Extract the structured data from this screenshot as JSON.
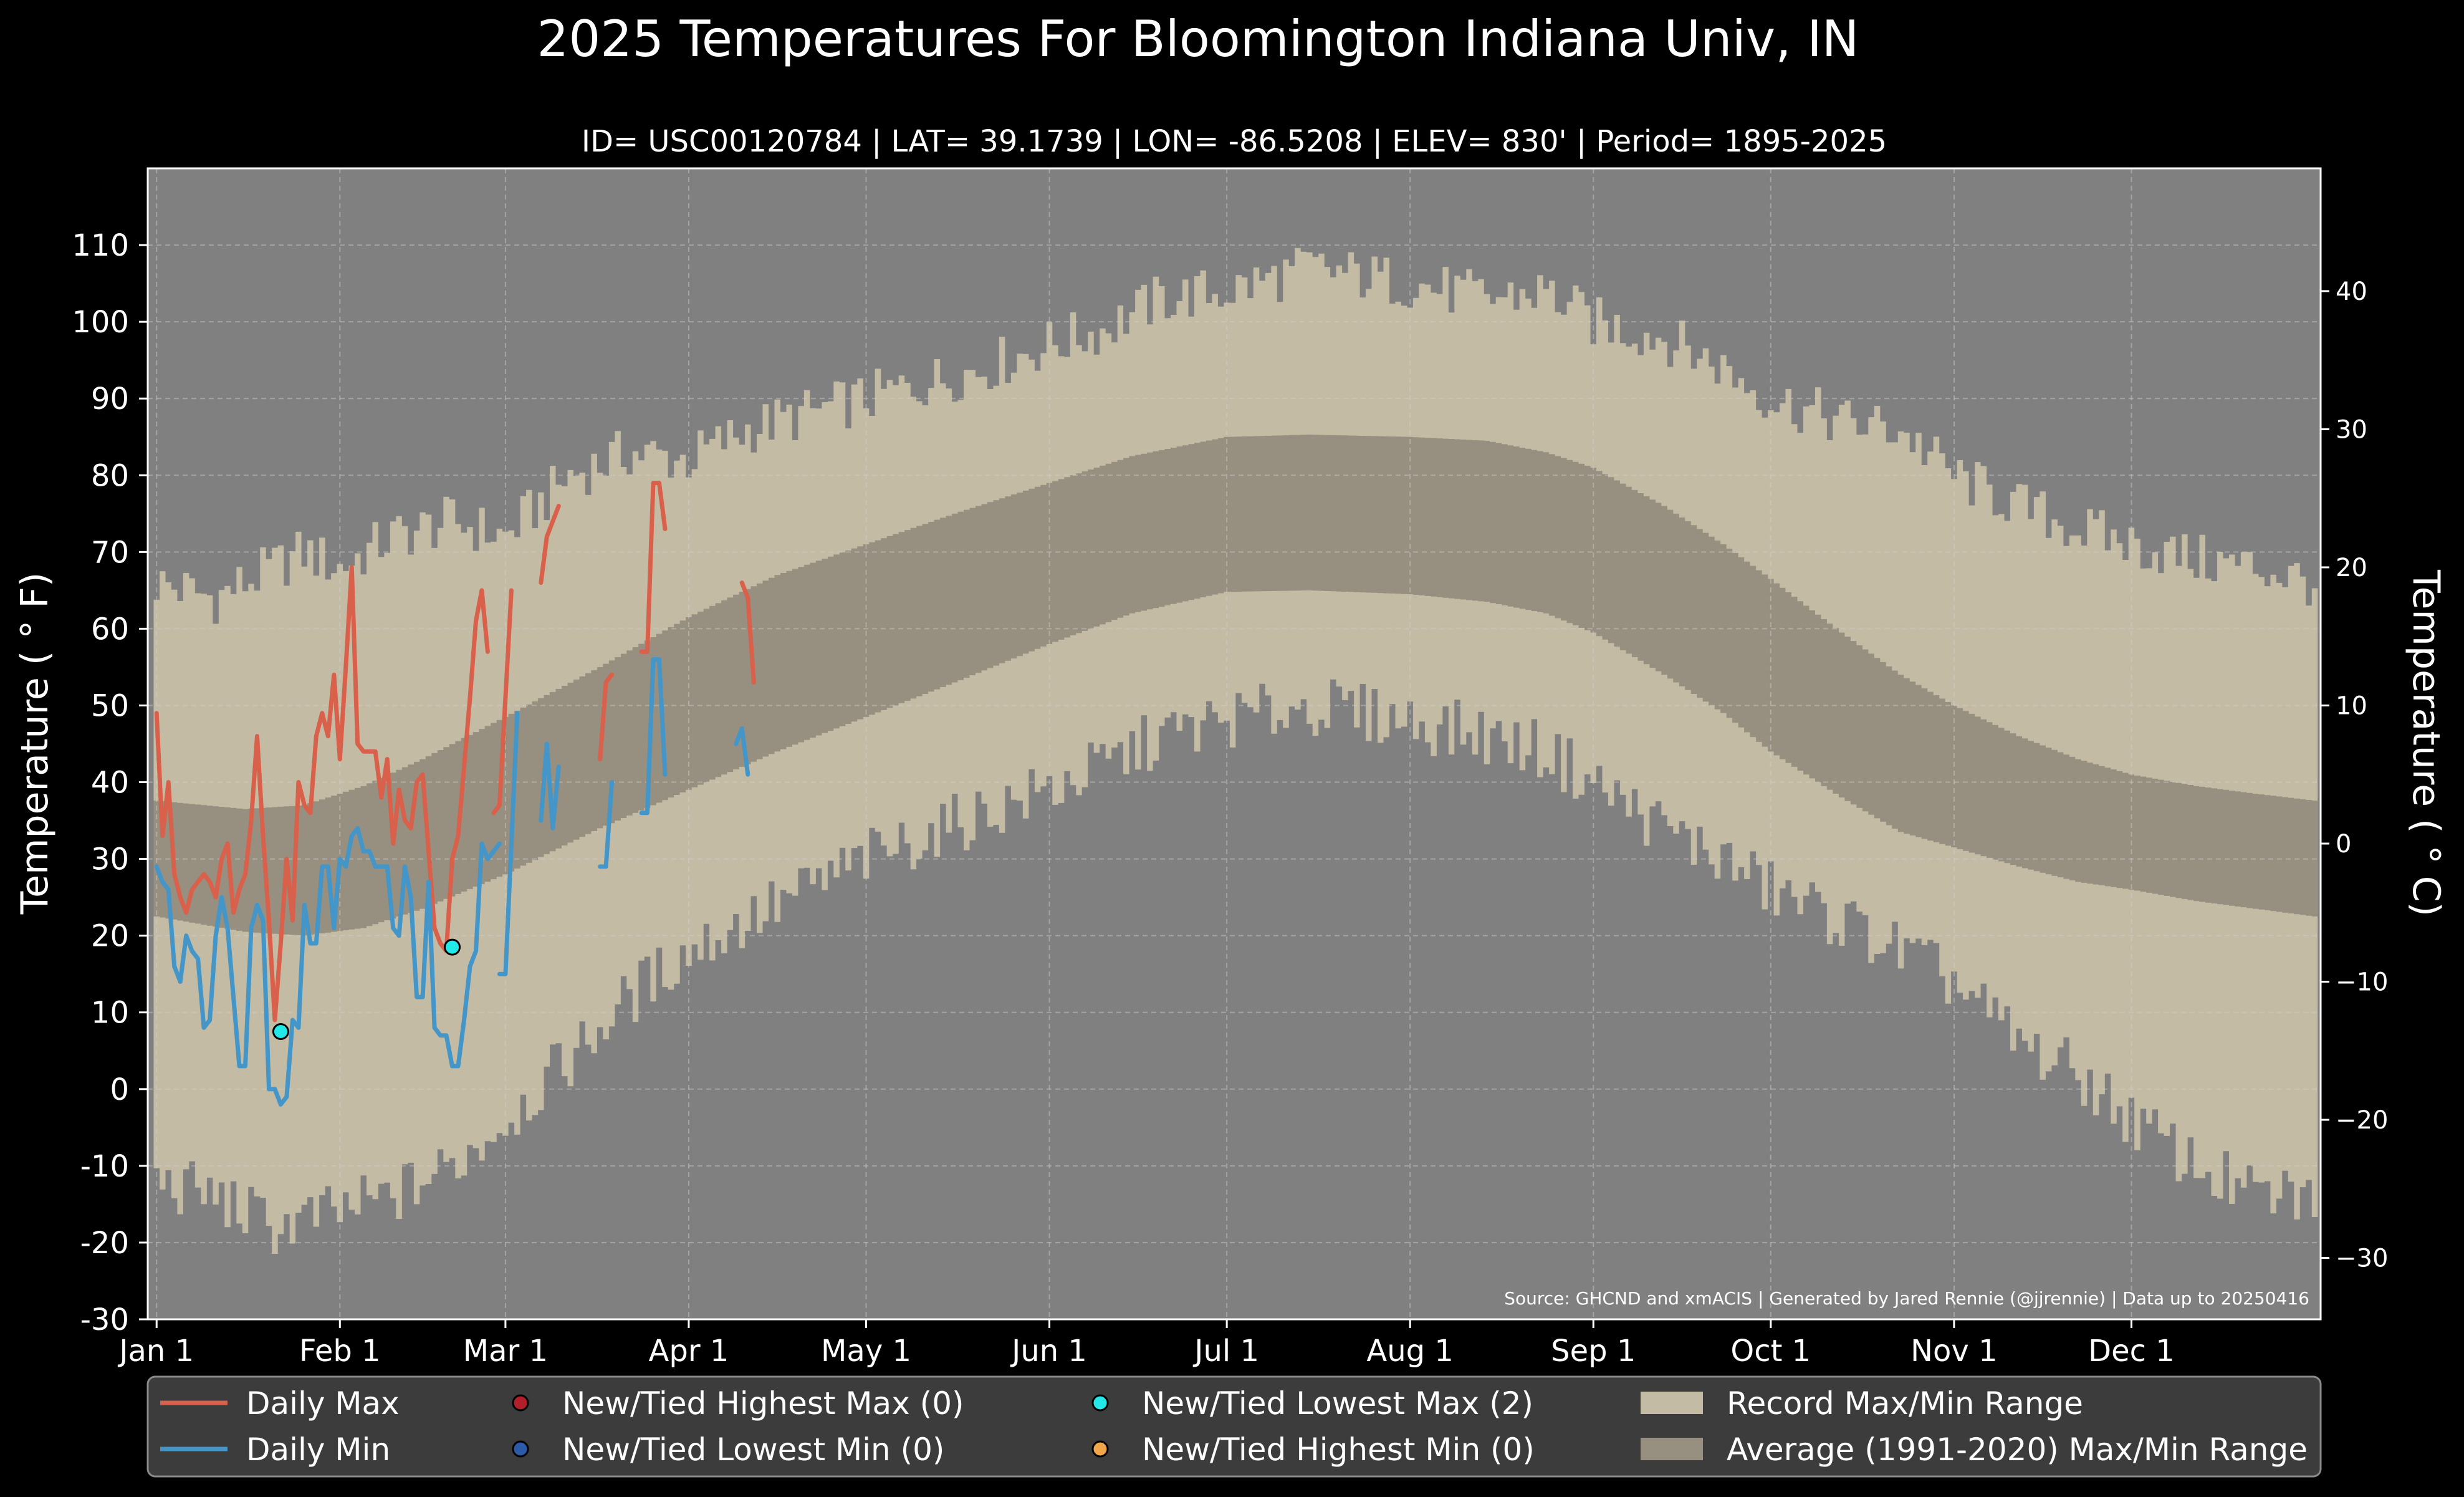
{
  "colors": {
    "background": "#000000",
    "plot_bg": "#808080",
    "record_fill": "#c4bba4",
    "normal_fill": "#978f7f",
    "daily_max": "#d9604a",
    "daily_min": "#4495c8",
    "record_low_max_marker": "#22e8e8",
    "record_high_max_marker": "#b21f2b",
    "record_low_min_marker": "#2b5aa8",
    "record_high_min_marker": "#f2a64a",
    "legend_bg": "#3c3c3c"
  },
  "chart_data": {
    "type": "line",
    "title": "2025 Temperatures For Bloomington Indiana Univ, IN",
    "subtitle": "ID= USC00120784 | LAT= 39.1739 | LON= -86.5208 | ELEV= 830' | Period= 1895-2025",
    "ylabel": "Temperature ($^\\circ$F)",
    "ylabel_display": "Temperature ( ° F)",
    "ylabel_right": "Temperature ( ° C)",
    "ylim": [
      -30,
      120
    ],
    "xlim": [
      -1.5,
      366
    ],
    "y_ticks": [
      -30,
      -20,
      -10,
      0,
      10,
      20,
      30,
      40,
      50,
      60,
      70,
      80,
      90,
      100,
      110
    ],
    "y_ticks_right_c": [
      -30,
      -20,
      -10,
      0,
      10,
      20,
      30,
      40
    ],
    "x_ticks": [
      {
        "label": "Jan 1",
        "day": 0
      },
      {
        "label": "Feb 1",
        "day": 31
      },
      {
        "label": "Mar 1",
        "day": 59
      },
      {
        "label": "Apr 1",
        "day": 90
      },
      {
        "label": "May 1",
        "day": 120
      },
      {
        "label": "Jun 1",
        "day": 151
      },
      {
        "label": "Jul 1",
        "day": 181
      },
      {
        "label": "Aug 1",
        "day": 212
      },
      {
        "label": "Sep 1",
        "day": 243
      },
      {
        "label": "Oct 1",
        "day": 273
      },
      {
        "label": "Nov 1",
        "day": 304
      },
      {
        "label": "Dec 1",
        "day": 334
      }
    ],
    "grid": true,
    "source": "Source: GHCND and xmACIS | Generated by Jared Rennie (@jjrennie) | Data up to 20250416",
    "record_max_anchors": [
      [
        0,
        66
      ],
      [
        10,
        64
      ],
      [
        20,
        68
      ],
      [
        25,
        70
      ],
      [
        31,
        68
      ],
      [
        40,
        72
      ],
      [
        50,
        74
      ],
      [
        59,
        72
      ],
      [
        70,
        80
      ],
      [
        80,
        83
      ],
      [
        90,
        82
      ],
      [
        100,
        86
      ],
      [
        110,
        88
      ],
      [
        120,
        90
      ],
      [
        130,
        92
      ],
      [
        140,
        94
      ],
      [
        151,
        97
      ],
      [
        160,
        99
      ],
      [
        170,
        103
      ],
      [
        181,
        104
      ],
      [
        195,
        107
      ],
      [
        212,
        105
      ],
      [
        225,
        103
      ],
      [
        235,
        104
      ],
      [
        243,
        100
      ],
      [
        255,
        98
      ],
      [
        265,
        94
      ],
      [
        273,
        90
      ],
      [
        285,
        87
      ],
      [
        295,
        86
      ],
      [
        304,
        80
      ],
      [
        315,
        76
      ],
      [
        325,
        73
      ],
      [
        334,
        71
      ],
      [
        345,
        69
      ],
      [
        355,
        68
      ],
      [
        365,
        66
      ]
    ],
    "record_min_anchors": [
      [
        0,
        -12
      ],
      [
        10,
        -14
      ],
      [
        20,
        -18
      ],
      [
        31,
        -16
      ],
      [
        40,
        -14
      ],
      [
        50,
        -10
      ],
      [
        59,
        -4
      ],
      [
        70,
        4
      ],
      [
        80,
        12
      ],
      [
        90,
        18
      ],
      [
        100,
        22
      ],
      [
        110,
        26
      ],
      [
        120,
        30
      ],
      [
        130,
        33
      ],
      [
        140,
        36
      ],
      [
        151,
        39
      ],
      [
        160,
        42
      ],
      [
        170,
        46
      ],
      [
        181,
        48
      ],
      [
        195,
        50
      ],
      [
        212,
        48
      ],
      [
        225,
        46
      ],
      [
        235,
        44
      ],
      [
        243,
        40
      ],
      [
        255,
        34
      ],
      [
        265,
        30
      ],
      [
        273,
        26
      ],
      [
        285,
        22
      ],
      [
        295,
        18
      ],
      [
        304,
        14
      ],
      [
        315,
        6
      ],
      [
        325,
        2
      ],
      [
        334,
        -4
      ],
      [
        345,
        -10
      ],
      [
        355,
        -14
      ],
      [
        365,
        -14
      ]
    ],
    "normal_max_anchors": [
      [
        0,
        37.6
      ],
      [
        15,
        36.5
      ],
      [
        25,
        37
      ],
      [
        35,
        39.5
      ],
      [
        45,
        43
      ],
      [
        59,
        48.5
      ],
      [
        75,
        55
      ],
      [
        90,
        61.5
      ],
      [
        105,
        67
      ],
      [
        120,
        71
      ],
      [
        135,
        75
      ],
      [
        151,
        79
      ],
      [
        165,
        82.5
      ],
      [
        181,
        85
      ],
      [
        195,
        85.3
      ],
      [
        212,
        85
      ],
      [
        225,
        84.5
      ],
      [
        235,
        83
      ],
      [
        243,
        81
      ],
      [
        255,
        76
      ],
      [
        265,
        71
      ],
      [
        273,
        66.5
      ],
      [
        285,
        59.5
      ],
      [
        295,
        54
      ],
      [
        304,
        50
      ],
      [
        315,
        46
      ],
      [
        325,
        43
      ],
      [
        334,
        41
      ],
      [
        345,
        39.5
      ],
      [
        355,
        38.5
      ],
      [
        365,
        37.6
      ]
    ],
    "normal_min_anchors": [
      [
        0,
        22.5
      ],
      [
        15,
        20.5
      ],
      [
        25,
        20
      ],
      [
        35,
        21
      ],
      [
        45,
        23.5
      ],
      [
        59,
        28
      ],
      [
        75,
        34
      ],
      [
        90,
        39
      ],
      [
        105,
        44
      ],
      [
        120,
        48.5
      ],
      [
        135,
        53
      ],
      [
        151,
        58
      ],
      [
        165,
        62
      ],
      [
        181,
        64.8
      ],
      [
        195,
        65
      ],
      [
        212,
        64.5
      ],
      [
        225,
        63.5
      ],
      [
        235,
        62
      ],
      [
        243,
        59.5
      ],
      [
        255,
        54
      ],
      [
        265,
        49
      ],
      [
        273,
        44
      ],
      [
        285,
        38
      ],
      [
        295,
        33.5
      ],
      [
        304,
        31.5
      ],
      [
        315,
        29
      ],
      [
        325,
        27
      ],
      [
        334,
        26
      ],
      [
        345,
        24.5
      ],
      [
        355,
        23.5
      ],
      [
        365,
        22.5
      ]
    ],
    "series": [
      {
        "name": "Daily Max",
        "segments": [
          [
            [
              0,
              49
            ],
            [
              1,
              33
            ],
            [
              2,
              40
            ],
            [
              3,
              28
            ],
            [
              4,
              25
            ],
            [
              5,
              23
            ],
            [
              6,
              26
            ],
            [
              7,
              27
            ],
            [
              8,
              28
            ],
            [
              9,
              27
            ],
            [
              10,
              25
            ],
            [
              11,
              30
            ],
            [
              12,
              32
            ],
            [
              13,
              23
            ],
            [
              14,
              26
            ],
            [
              15,
              28
            ],
            [
              16,
              35
            ],
            [
              17,
              46
            ],
            [
              18,
              33
            ],
            [
              19,
              22
            ],
            [
              20,
              9
            ],
            [
              21,
              19
            ],
            [
              22,
              30
            ],
            [
              23,
              22
            ],
            [
              24,
              40
            ],
            [
              25,
              37
            ],
            [
              26,
              36
            ],
            [
              27,
              46
            ],
            [
              28,
              49
            ],
            [
              29,
              46
            ],
            [
              30,
              54
            ],
            [
              31,
              43
            ],
            [
              32,
              55
            ],
            [
              33,
              68
            ],
            [
              34,
              45
            ],
            [
              35,
              44
            ],
            [
              36,
              44
            ],
            [
              37,
              44
            ],
            [
              38,
              38
            ],
            [
              39,
              43
            ],
            [
              40,
              32
            ],
            [
              41,
              39
            ],
            [
              42,
              35
            ],
            [
              43,
              34
            ],
            [
              44,
              40
            ],
            [
              45,
              41
            ],
            [
              46,
              31
            ],
            [
              47,
              21
            ],
            [
              48,
              19
            ],
            [
              49,
              18
            ],
            [
              50,
              30
            ],
            [
              51,
              33
            ],
            [
              52,
              42
            ],
            [
              53,
              51
            ],
            [
              54,
              61
            ],
            [
              55,
              65
            ],
            [
              56,
              57
            ]
          ],
          [
            [
              57,
              36
            ],
            [
              58,
              37
            ],
            [
              59,
              51
            ],
            [
              60,
              65
            ]
          ],
          [
            [
              65,
              66
            ],
            [
              66,
              72
            ],
            [
              67,
              74
            ],
            [
              68,
              76
            ]
          ],
          [
            [
              75,
              43
            ],
            [
              76,
              53
            ],
            [
              77,
              54
            ]
          ],
          [
            [
              82,
              57
            ],
            [
              83,
              57
            ],
            [
              84,
              79
            ],
            [
              85,
              79
            ],
            [
              86,
              73
            ]
          ],
          [
            [
              99,
              66
            ],
            [
              100,
              64
            ],
            [
              101,
              53
            ]
          ]
        ]
      },
      {
        "name": "Daily Min",
        "segments": [
          [
            [
              0,
              29
            ],
            [
              1,
              27
            ],
            [
              2,
              26
            ],
            [
              3,
              16
            ],
            [
              4,
              14
            ],
            [
              5,
              20
            ],
            [
              6,
              18
            ],
            [
              7,
              17
            ],
            [
              8,
              8
            ],
            [
              9,
              9
            ],
            [
              10,
              20
            ],
            [
              11,
              25
            ],
            [
              12,
              21
            ],
            [
              13,
              12
            ],
            [
              14,
              3
            ],
            [
              15,
              3
            ],
            [
              16,
              21
            ],
            [
              17,
              24
            ],
            [
              18,
              22
            ],
            [
              19,
              0
            ],
            [
              20,
              0
            ],
            [
              21,
              -2
            ],
            [
              22,
              -1
            ],
            [
              23,
              9
            ],
            [
              24,
              8
            ],
            [
              25,
              24
            ],
            [
              26,
              19
            ],
            [
              27,
              19
            ],
            [
              28,
              29
            ],
            [
              29,
              29
            ],
            [
              30,
              21
            ],
            [
              31,
              30
            ],
            [
              32,
              29
            ],
            [
              33,
              33
            ],
            [
              34,
              34
            ],
            [
              35,
              31
            ],
            [
              36,
              31
            ],
            [
              37,
              29
            ],
            [
              38,
              29
            ],
            [
              39,
              29
            ],
            [
              40,
              21
            ],
            [
              41,
              20
            ],
            [
              42,
              29
            ],
            [
              43,
              25
            ],
            [
              44,
              12
            ],
            [
              45,
              12
            ],
            [
              46,
              27
            ],
            [
              47,
              8
            ],
            [
              48,
              7
            ],
            [
              49,
              7
            ],
            [
              50,
              3
            ],
            [
              51,
              3
            ],
            [
              52,
              9
            ],
            [
              53,
              16
            ],
            [
              54,
              18
            ],
            [
              55,
              32
            ],
            [
              56,
              30
            ],
            [
              57,
              31
            ],
            [
              58,
              32
            ]
          ],
          [
            [
              58,
              15
            ],
            [
              59,
              15
            ],
            [
              60,
              32
            ],
            [
              61,
              49
            ]
          ],
          [
            [
              65,
              35
            ],
            [
              66,
              45
            ],
            [
              67,
              34
            ],
            [
              68,
              42
            ]
          ],
          [
            [
              75,
              29
            ],
            [
              76,
              29
            ],
            [
              77,
              40
            ]
          ],
          [
            [
              82,
              36
            ],
            [
              83,
              36
            ],
            [
              84,
              56
            ],
            [
              85,
              56
            ],
            [
              86,
              41
            ]
          ],
          [
            [
              98,
              45
            ],
            [
              99,
              47
            ],
            [
              100,
              41
            ]
          ]
        ]
      }
    ],
    "markers": [
      {
        "name": "New/Tied Lowest Max",
        "points": [
          [
            21,
            7.5
          ],
          [
            50,
            18.5
          ]
        ]
      }
    ],
    "legend": {
      "placement": "bottom",
      "items": [
        {
          "label": "Daily Max",
          "kind": "line",
          "color_key": "daily_max"
        },
        {
          "label": "New/Tied Highest Max (0)",
          "kind": "dot",
          "color_key": "record_high_max_marker"
        },
        {
          "label": "New/Tied Lowest Max (2)",
          "kind": "dot",
          "color_key": "record_low_max_marker"
        },
        {
          "label": "Record Max/Min Range",
          "kind": "patch",
          "color_key": "record_fill"
        },
        {
          "label": "Daily Min",
          "kind": "line",
          "color_key": "daily_min"
        },
        {
          "label": "New/Tied Lowest Min (0)",
          "kind": "dot",
          "color_key": "record_low_min_marker"
        },
        {
          "label": "New/Tied Highest Min (0)",
          "kind": "dot",
          "color_key": "record_high_min_marker"
        },
        {
          "label": "Average (1991-2020) Max/Min Range",
          "kind": "patch",
          "color_key": "normal_fill"
        }
      ]
    }
  }
}
